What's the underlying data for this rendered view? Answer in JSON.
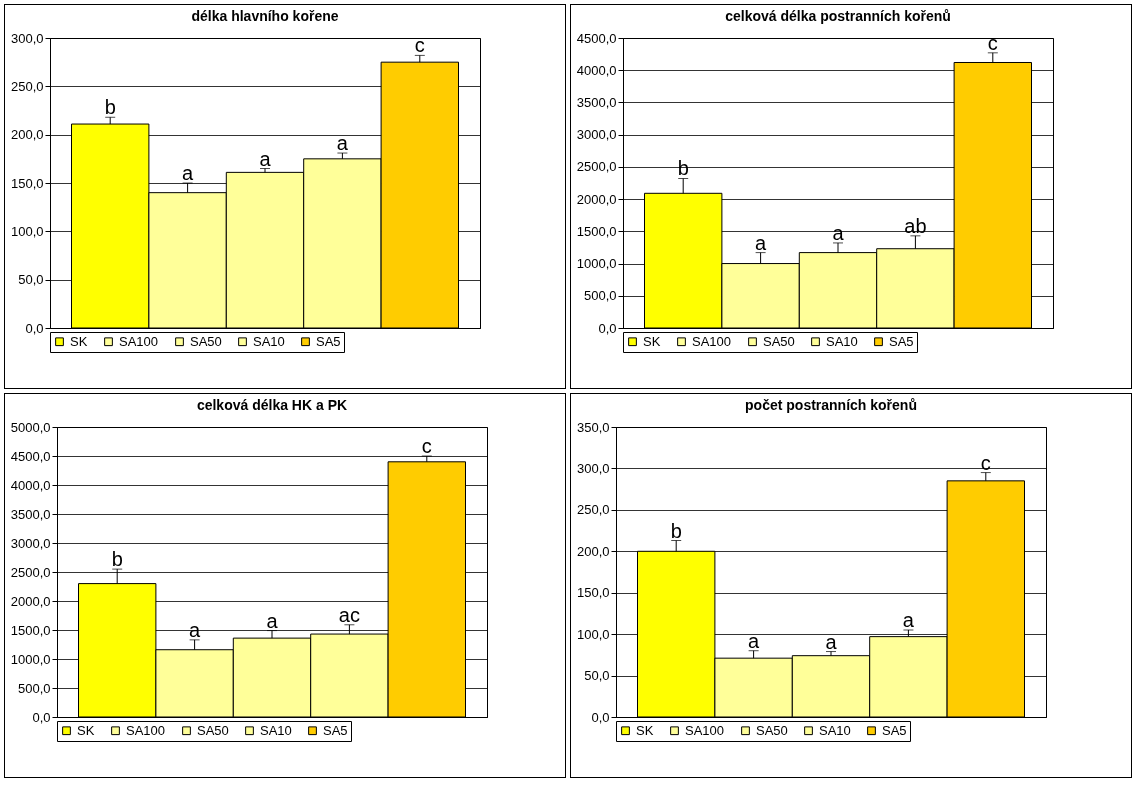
{
  "chart_data": [
    {
      "type": "bar",
      "title": "délka hlavního kořene",
      "categories": [
        null
      ],
      "ylim": [
        0,
        300
      ],
      "yticks": [
        {
          "value": 0,
          "label": "0,0"
        },
        {
          "value": 50,
          "label": "50,0"
        },
        {
          "value": 100,
          "label": "100,0"
        },
        {
          "value": 150,
          "label": "150,0"
        },
        {
          "value": 200,
          "label": "200,0"
        },
        {
          "value": 250,
          "label": "250,0"
        },
        {
          "value": 300,
          "label": "300,0"
        }
      ],
      "grid": "y",
      "legend": "bottom",
      "tick_labels": "y",
      "series": [
        {
          "name": "SK",
          "color": "#ffff00",
          "values": [
            211
          ],
          "errors": [
            [
              211,
              218
            ]
          ]
        },
        {
          "name": "SA100",
          "color": "#ffff99",
          "values": [
            140
          ],
          "errors": [
            [
              140,
              150
            ]
          ]
        },
        {
          "name": "SA50",
          "color": "#ffff99",
          "values": [
            161
          ],
          "errors": [
            [
              161,
              165
            ]
          ]
        },
        {
          "name": "SA10",
          "color": "#ffff99",
          "values": [
            175
          ],
          "errors": [
            [
              175,
              181
            ]
          ]
        },
        {
          "name": "SA5",
          "color": "#ffcc00",
          "values": [
            275
          ],
          "errors": [
            [
              275,
              282
            ]
          ]
        }
      ],
      "annotations": [
        "b",
        "a",
        "a",
        "a",
        "c"
      ]
    },
    {
      "type": "bar",
      "title": "celková délka postranních kořenů",
      "categories": [
        null
      ],
      "ylim": [
        0,
        4500
      ],
      "yticks": [
        {
          "value": 0,
          "label": "0,0"
        },
        {
          "value": 500,
          "label": "500,0"
        },
        {
          "value": 1000,
          "label": "1000,0"
        },
        {
          "value": 1500,
          "label": "1500,0"
        },
        {
          "value": 2000,
          "label": "2000,0"
        },
        {
          "value": 2500,
          "label": "2500,0"
        },
        {
          "value": 3000,
          "label": "3000,0"
        },
        {
          "value": 3500,
          "label": "3500,0"
        },
        {
          "value": 4000,
          "label": "4000,0"
        },
        {
          "value": 4500,
          "label": "4500,0"
        }
      ],
      "grid": "y",
      "legend": "bottom",
      "tick_labels": "y",
      "series": [
        {
          "name": "SK",
          "color": "#ffff00",
          "values": [
            2090
          ],
          "errors": [
            [
              2090,
              2320
            ]
          ]
        },
        {
          "name": "SA100",
          "color": "#ffff99",
          "values": [
            1000
          ],
          "errors": [
            [
              1000,
              1170
            ]
          ]
        },
        {
          "name": "SA50",
          "color": "#ffff99",
          "values": [
            1170
          ],
          "errors": [
            [
              1170,
              1320
            ]
          ]
        },
        {
          "name": "SA10",
          "color": "#ffff99",
          "values": [
            1230
          ],
          "errors": [
            [
              1230,
              1430
            ]
          ]
        },
        {
          "name": "SA5",
          "color": "#ffcc00",
          "values": [
            4120
          ],
          "errors": [
            [
              4120,
              4270
            ]
          ]
        }
      ],
      "annotations": [
        "b",
        "a",
        "a",
        "ab",
        "c"
      ]
    },
    {
      "type": "bar",
      "title": "celková délka HK a PK",
      "categories": [
        null
      ],
      "ylim": [
        0,
        5000
      ],
      "yticks": [
        {
          "value": 0,
          "label": "0,0"
        },
        {
          "value": 500,
          "label": "500,0"
        },
        {
          "value": 1000,
          "label": "1000,0"
        },
        {
          "value": 1500,
          "label": "1500,0"
        },
        {
          "value": 2000,
          "label": "2000,0"
        },
        {
          "value": 2500,
          "label": "2500,0"
        },
        {
          "value": 3000,
          "label": "3000,0"
        },
        {
          "value": 3500,
          "label": "3500,0"
        },
        {
          "value": 4000,
          "label": "4000,0"
        },
        {
          "value": 4500,
          "label": "4500,0"
        },
        {
          "value": 5000,
          "label": "5000,0"
        }
      ],
      "grid": "y",
      "legend": "bottom",
      "tick_labels": "y",
      "series": [
        {
          "name": "SK",
          "color": "#ffff00",
          "values": [
            2300
          ],
          "errors": [
            [
              2300,
              2550
            ]
          ]
        },
        {
          "name": "SA100",
          "color": "#ffff99",
          "values": [
            1160
          ],
          "errors": [
            [
              1160,
              1330
            ]
          ]
        },
        {
          "name": "SA50",
          "color": "#ffff99",
          "values": [
            1360
          ],
          "errors": [
            [
              1360,
              1490
            ]
          ]
        },
        {
          "name": "SA10",
          "color": "#ffff99",
          "values": [
            1430
          ],
          "errors": [
            [
              1430,
              1590
            ]
          ]
        },
        {
          "name": "SA5",
          "color": "#ffcc00",
          "values": [
            4400
          ],
          "errors": [
            [
              4400,
              4500
            ]
          ]
        }
      ],
      "annotations": [
        "b",
        "a",
        "a",
        "ac",
        "c"
      ]
    },
    {
      "type": "bar",
      "title": "počet postranních kořenů",
      "categories": [
        null
      ],
      "ylim": [
        0,
        350
      ],
      "yticks": [
        {
          "value": 0,
          "label": "0,0"
        },
        {
          "value": 50,
          "label": "50,0"
        },
        {
          "value": 100,
          "label": "100,0"
        },
        {
          "value": 150,
          "label": "150,0"
        },
        {
          "value": 200,
          "label": "200,0"
        },
        {
          "value": 250,
          "label": "250,0"
        },
        {
          "value": 300,
          "label": "300,0"
        },
        {
          "value": 350,
          "label": "350,0"
        }
      ],
      "grid": "y",
      "legend": "bottom",
      "tick_labels": "y",
      "series": [
        {
          "name": "SK",
          "color": "#ffff00",
          "values": [
            200
          ],
          "errors": [
            [
              200,
              213
            ]
          ]
        },
        {
          "name": "SA100",
          "color": "#ffff99",
          "values": [
            71
          ],
          "errors": [
            [
              71,
              80
            ]
          ]
        },
        {
          "name": "SA50",
          "color": "#ffff99",
          "values": [
            74
          ],
          "errors": [
            [
              74,
              79
            ]
          ]
        },
        {
          "name": "SA10",
          "color": "#ffff99",
          "values": [
            97
          ],
          "errors": [
            [
              97,
              105
            ]
          ]
        },
        {
          "name": "SA5",
          "color": "#ffcc00",
          "values": [
            285
          ],
          "errors": [
            [
              285,
              295
            ]
          ]
        }
      ],
      "annotations": [
        "b",
        "a",
        "a",
        "a",
        "c"
      ]
    }
  ]
}
